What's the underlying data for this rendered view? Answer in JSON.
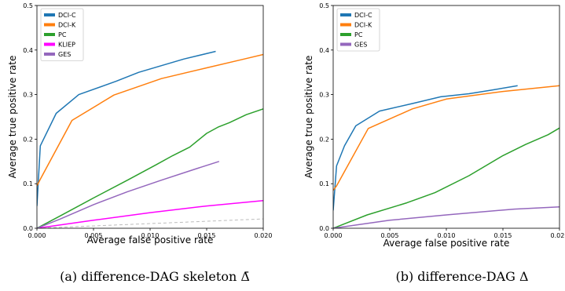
{
  "chart_data": [
    {
      "type": "line",
      "xlabel": "Average false positive rate",
      "ylabel": "Average true positive rate",
      "xlim": [
        0,
        0.02
      ],
      "ylim": [
        0,
        0.5
      ],
      "xticks": [
        "0.000",
        "0.005",
        "0.010",
        "0.015",
        "0.020"
      ],
      "yticks": [
        "0.0",
        "0.1",
        "0.2",
        "0.3",
        "0.4",
        "0.5"
      ],
      "caption": "(a)  difference-DAG skeleton Δ̄",
      "legend_position": "top-left",
      "series": [
        {
          "name": "DCI-C",
          "color": "#1f77b4",
          "x": [
            0,
            0.0003,
            0.0017,
            0.0037,
            0.007,
            0.009,
            0.011,
            0.013,
            0.0158
          ],
          "y": [
            0.05,
            0.185,
            0.258,
            0.3,
            0.33,
            0.35,
            0.365,
            0.38,
            0.397
          ]
        },
        {
          "name": "DCI-K",
          "color": "#ff7f0e",
          "x": [
            0,
            0.0003,
            0.0031,
            0.0068,
            0.011,
            0.015,
            0.018,
            0.02
          ],
          "y": [
            0.095,
            0.11,
            0.242,
            0.299,
            0.336,
            0.36,
            0.378,
            0.39
          ]
        },
        {
          "name": "PC",
          "color": "#2ca02c",
          "x": [
            0,
            0.002,
            0.005,
            0.008,
            0.0105,
            0.012,
            0.0135,
            0.015,
            0.016,
            0.017,
            0.0185,
            0.02
          ],
          "y": [
            0,
            0.027,
            0.068,
            0.108,
            0.142,
            0.163,
            0.182,
            0.213,
            0.227,
            0.237,
            0.255,
            0.268
          ]
        },
        {
          "name": "KLIEP",
          "color": "#ff00ff",
          "x": [
            0,
            0.005,
            0.01,
            0.015,
            0.02
          ],
          "y": [
            0,
            0.018,
            0.035,
            0.05,
            0.062
          ]
        },
        {
          "name": "GES",
          "color": "#9467bd",
          "x": [
            0,
            0.002,
            0.005,
            0.008,
            0.011,
            0.014,
            0.0161
          ],
          "y": [
            0,
            0.02,
            0.053,
            0.082,
            0.108,
            0.133,
            0.15
          ]
        },
        {
          "name": "",
          "color": "#bbbbbb",
          "dashed": true,
          "x": [
            0,
            0.02
          ],
          "y": [
            0,
            0.021
          ]
        }
      ]
    },
    {
      "type": "line",
      "xlabel": "Average false positive rate",
      "ylabel": "Average true positive rate",
      "xlim": [
        0,
        0.02
      ],
      "ylim": [
        0,
        0.5
      ],
      "xticks": [
        "0.000",
        "0.005",
        "0.010",
        "0.015",
        "0.020"
      ],
      "yticks": [
        "0.0",
        "0.1",
        "0.2",
        "0.3",
        "0.4",
        "0.5"
      ],
      "caption": "(b)  difference-DAG Δ",
      "legend_position": "top-left",
      "series": [
        {
          "name": "DCI-C",
          "color": "#1f77b4",
          "x": [
            0,
            0.0003,
            0.001,
            0.002,
            0.0041,
            0.007,
            0.0095,
            0.012,
            0.014,
            0.0163
          ],
          "y": [
            0.04,
            0.14,
            0.185,
            0.23,
            0.263,
            0.28,
            0.295,
            0.302,
            0.31,
            0.32
          ]
        },
        {
          "name": "DCI-K",
          "color": "#ff7f0e",
          "x": [
            0,
            0.0003,
            0.0031,
            0.007,
            0.01,
            0.015,
            0.02
          ],
          "y": [
            0.085,
            0.095,
            0.224,
            0.268,
            0.29,
            0.307,
            0.32
          ]
        },
        {
          "name": "PC",
          "color": "#2ca02c",
          "x": [
            0,
            0.003,
            0.0065,
            0.009,
            0.012,
            0.015,
            0.017,
            0.019,
            0.02
          ],
          "y": [
            0,
            0.03,
            0.057,
            0.08,
            0.118,
            0.163,
            0.188,
            0.21,
            0.225
          ]
        },
        {
          "name": "GES",
          "color": "#9467bd",
          "x": [
            0,
            0.005,
            0.01,
            0.016,
            0.02
          ],
          "y": [
            0,
            0.018,
            0.03,
            0.043,
            0.048
          ]
        }
      ]
    }
  ]
}
